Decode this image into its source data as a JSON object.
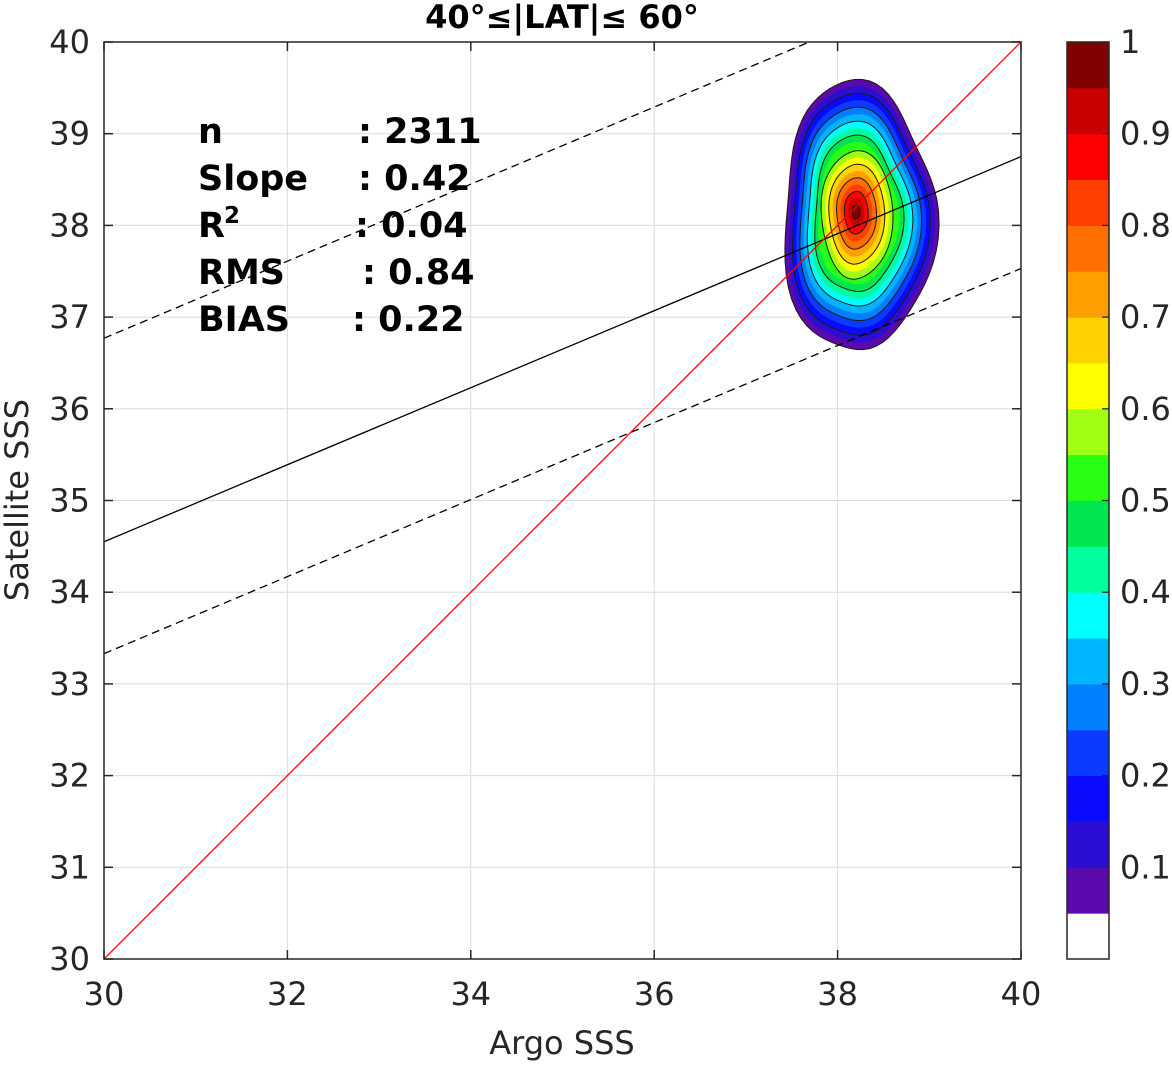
{
  "chart_data": {
    "type": "heatmap",
    "title": "40°≤|LAT|≤ 60°",
    "xlabel": "Argo SSS",
    "ylabel": "Satellite SSS",
    "xlim": [
      30,
      40
    ],
    "ylim": [
      30,
      40
    ],
    "xticks": [
      "30",
      "32",
      "34",
      "36",
      "38",
      "40"
    ],
    "yticks": [
      "30",
      "31",
      "32",
      "33",
      "34",
      "35",
      "36",
      "37",
      "38",
      "39",
      "40"
    ],
    "grid": true,
    "stats": [
      {
        "label": "n",
        "value": ": 2311"
      },
      {
        "label": "Slope",
        "value": ": 0.42"
      },
      {
        "label": "R",
        "sup": "2",
        "value": ": 0.04"
      },
      {
        "label": "RMS",
        "value": ": 0.84"
      },
      {
        "label": "BIAS",
        "value": ": 0.22"
      }
    ],
    "density": {
      "center": [
        38.2,
        38.15
      ],
      "outer_extent": {
        "x": [
          37.4,
          39.05
        ],
        "y": [
          36.6,
          39.55
        ]
      },
      "peak": 1.0
    },
    "fit_line": {
      "slope": 0.42,
      "intercept": 21.95,
      "color": "#000000",
      "style": "solid"
    },
    "fit_bounds": [
      {
        "slope": 0.42,
        "intercept": 24.17,
        "color": "#000000",
        "style": "dashed"
      },
      {
        "slope": 0.42,
        "intercept": 20.73,
        "color": "#000000",
        "style": "dashed"
      }
    ],
    "identity_line": {
      "slope": 1,
      "intercept": 0,
      "color": "#ff0000"
    },
    "colorbar": {
      "range": [
        0,
        1
      ],
      "ticks": [
        "0.1",
        "0.2",
        "0.3",
        "0.4",
        "0.5",
        "0.6",
        "0.7",
        "0.8",
        "0.9",
        "1"
      ],
      "colors": [
        "#ffffff",
        "#5a0aaa",
        "#2a0fd2",
        "#0a0aff",
        "#0a3cff",
        "#0080ff",
        "#00b4ff",
        "#00ffff",
        "#00ff9c",
        "#00e650",
        "#28ff14",
        "#a0ff14",
        "#ffff00",
        "#ffd200",
        "#ff9e00",
        "#ff6e00",
        "#ff4000",
        "#ff0000",
        "#c80000",
        "#800000"
      ]
    }
  }
}
